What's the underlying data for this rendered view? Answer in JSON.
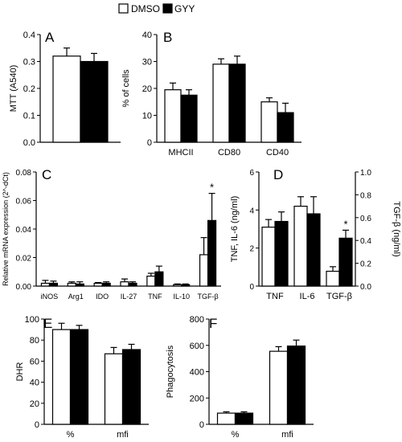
{
  "legend": {
    "placement": "top-center",
    "items": [
      {
        "label": "DMSO",
        "color": "#ffffff"
      },
      {
        "label": "GYY",
        "color": "#000000"
      }
    ]
  },
  "chart_data": [
    {
      "panel": "A",
      "type": "bar",
      "categories": [
        ""
      ],
      "series": [
        {
          "name": "DMSO",
          "values": [
            0.32
          ],
          "errors": [
            0.03
          ]
        },
        {
          "name": "GYY",
          "values": [
            0.3
          ],
          "errors": [
            0.03
          ]
        }
      ],
      "ylabel": "MTT (A540)",
      "ylim": [
        0,
        0.4
      ],
      "yticks": [
        "0.0",
        "0.1",
        "0.2",
        "0.3",
        "0.4"
      ]
    },
    {
      "panel": "B",
      "type": "bar",
      "categories": [
        "MHCII",
        "CD80",
        "CD40"
      ],
      "series": [
        {
          "name": "DMSO",
          "values": [
            19.5,
            29,
            15
          ],
          "errors": [
            2.5,
            2,
            1.5
          ]
        },
        {
          "name": "GYY",
          "values": [
            17.5,
            29,
            11
          ],
          "errors": [
            2,
            3,
            3.5
          ]
        }
      ],
      "ylabel": "% of cells",
      "ylim": [
        0,
        40
      ],
      "yticks": [
        "0",
        "10",
        "20",
        "30",
        "40"
      ]
    },
    {
      "panel": "C",
      "type": "bar",
      "categories": [
        "iNOS",
        "Arg1",
        "IDO",
        "IL-27",
        "TNF",
        "IL-10",
        "TGF-β"
      ],
      "series": [
        {
          "name": "DMSO",
          "values": [
            0.002,
            0.002,
            0.002,
            0.003,
            0.007,
            0.001,
            0.022
          ],
          "errors": [
            0.002,
            0.001,
            0.0005,
            0.002,
            0.002,
            0.0005,
            0.012
          ]
        },
        {
          "name": "GYY",
          "values": [
            0.002,
            0.0015,
            0.002,
            0.002,
            0.01,
            0.001,
            0.046
          ],
          "errors": [
            0.0015,
            0.0015,
            0.001,
            0.001,
            0.004,
            0.0005,
            0.019
          ]
        }
      ],
      "ylabel": "Relative mRNA expression (2^-dCt)",
      "ylim": [
        0,
        0.08
      ],
      "yticks": [
        "0.00",
        "0.02",
        "0.04",
        "0.06",
        "0.08"
      ],
      "annotations": [
        {
          "category": "TGF-β",
          "series": "GYY",
          "text": "*"
        }
      ]
    },
    {
      "panel": "D",
      "type": "bar",
      "categories": [
        "TNF",
        "IL-6",
        "TGF-β"
      ],
      "series": [
        {
          "name": "DMSO",
          "values": [
            3.1,
            4.2,
            0.13
          ],
          "errors": [
            0.4,
            0.5,
            0.04
          ],
          "axis": [
            "left",
            "left",
            "right"
          ]
        },
        {
          "name": "GYY",
          "values": [
            3.4,
            3.8,
            0.42
          ],
          "errors": [
            0.5,
            0.9,
            0.07
          ],
          "axis": [
            "left",
            "left",
            "right"
          ]
        }
      ],
      "ylabel": "TNF, IL-6 (ng/ml)",
      "ylim": [
        0,
        6
      ],
      "yticks": [
        "0",
        "2",
        "4",
        "6"
      ],
      "y2label": "TGF-β (ng/ml)",
      "y2lim": [
        0,
        1.0
      ],
      "y2ticks": [
        "0.0",
        "0.2",
        "0.4",
        "0.6",
        "0.8",
        "1.0"
      ],
      "annotations": [
        {
          "category": "TGF-β",
          "series": "GYY",
          "text": "*"
        }
      ]
    },
    {
      "panel": "E",
      "type": "bar",
      "categories": [
        "%",
        "mfi"
      ],
      "series": [
        {
          "name": "DMSO",
          "values": [
            90,
            67
          ],
          "errors": [
            6,
            6
          ]
        },
        {
          "name": "GYY",
          "values": [
            90,
            71
          ],
          "errors": [
            4,
            5
          ]
        }
      ],
      "ylabel": "DHR",
      "ylim": [
        0,
        100
      ],
      "yticks": [
        "0",
        "20",
        "40",
        "60",
        "80",
        "100"
      ]
    },
    {
      "panel": "F",
      "type": "bar",
      "categories": [
        "%",
        "mfi"
      ],
      "series": [
        {
          "name": "DMSO",
          "values": [
            85,
            555
          ],
          "errors": [
            10,
            35
          ]
        },
        {
          "name": "GYY",
          "values": [
            85,
            595
          ],
          "errors": [
            10,
            45
          ]
        }
      ],
      "ylabel": "Phagocytosis",
      "ylim": [
        0,
        800
      ],
      "yticks": [
        "0",
        "200",
        "400",
        "600",
        "800"
      ]
    }
  ]
}
